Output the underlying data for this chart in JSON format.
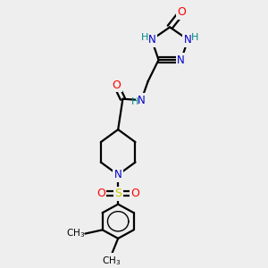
{
  "bg_color": "#eeeeee",
  "colors": {
    "O": "#ff0000",
    "N": "#0000cc",
    "S": "#cccc00",
    "C": "#000000",
    "H": "#008888"
  },
  "bond_lw": 1.6,
  "fontsize": 8.5
}
